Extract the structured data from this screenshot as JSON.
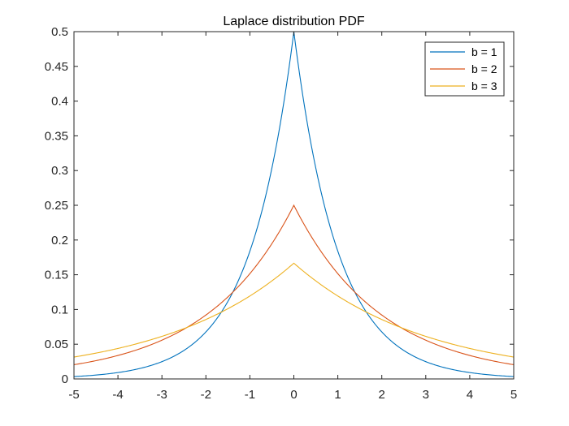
{
  "chart_data": {
    "type": "line",
    "title": "Laplace distribution PDF",
    "xlabel": "",
    "ylabel": "",
    "xlim": [
      -5,
      5
    ],
    "ylim": [
      0,
      0.5
    ],
    "x_ticks": [
      -5,
      -4,
      -3,
      -2,
      -1,
      0,
      1,
      2,
      3,
      4,
      5
    ],
    "y_ticks": [
      0,
      0.05,
      0.1,
      0.15,
      0.2,
      0.25,
      0.3,
      0.35,
      0.4,
      0.45,
      0.5
    ],
    "x_tick_labels": [
      "-5",
      "-4",
      "-3",
      "-2",
      "-1",
      "0",
      "1",
      "2",
      "3",
      "4",
      "5"
    ],
    "y_tick_labels": [
      "0",
      "0.05",
      "0.1",
      "0.15",
      "0.2",
      "0.25",
      "0.3",
      "0.35",
      "0.4",
      "0.45",
      "0.5"
    ],
    "grid": false,
    "legend_position": "top-right",
    "x": [
      -5,
      -4.5,
      -4,
      -3.5,
      -3,
      -2.5,
      -2,
      -1.5,
      -1,
      -0.5,
      0,
      0.5,
      1,
      1.5,
      2,
      2.5,
      3,
      3.5,
      4,
      4.5,
      5
    ],
    "series": [
      {
        "name": "b = 1",
        "color": "#0072BD",
        "values": [
          0.0034,
          0.0056,
          0.0092,
          0.0151,
          0.0249,
          0.041,
          0.0677,
          0.1116,
          0.1839,
          0.3033,
          0.5,
          0.3033,
          0.1839,
          0.1116,
          0.0677,
          0.041,
          0.0249,
          0.0151,
          0.0092,
          0.0056,
          0.0034
        ]
      },
      {
        "name": "b = 2",
        "color": "#D95319",
        "values": [
          0.0205,
          0.0263,
          0.0338,
          0.0434,
          0.0558,
          0.0716,
          0.092,
          0.1181,
          0.1516,
          0.1947,
          0.25,
          0.1947,
          0.1516,
          0.1181,
          0.092,
          0.0716,
          0.0558,
          0.0434,
          0.0338,
          0.0263,
          0.0205
        ]
      },
      {
        "name": "b = 3",
        "color": "#EDB120",
        "values": [
          0.0315,
          0.0372,
          0.0439,
          0.0519,
          0.0613,
          0.0724,
          0.0856,
          0.1011,
          0.1194,
          0.1411,
          0.1667,
          0.1411,
          0.1194,
          0.1011,
          0.0856,
          0.0724,
          0.0613,
          0.0519,
          0.0439,
          0.0372,
          0.0315
        ]
      }
    ]
  }
}
